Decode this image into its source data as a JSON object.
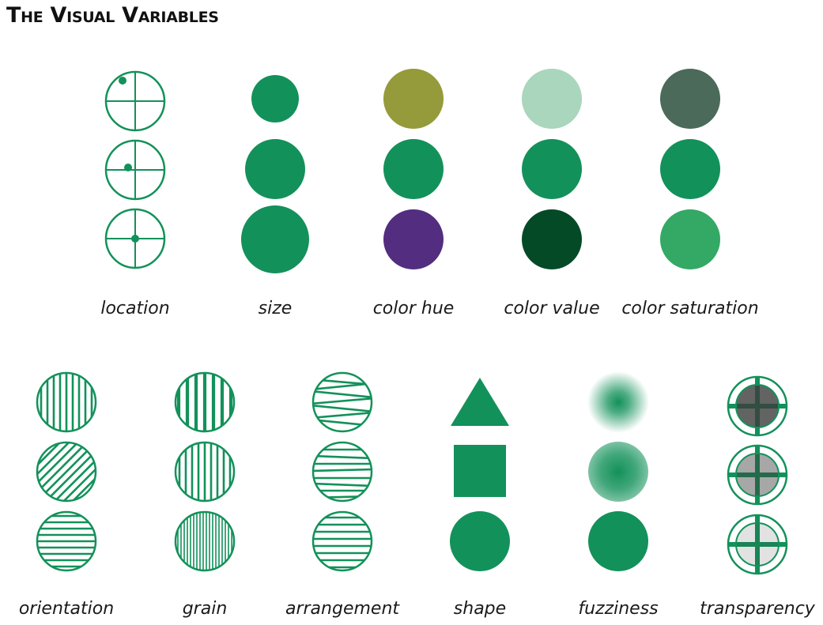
{
  "title": "The Visual Variables",
  "colors": {
    "green": "#13915a",
    "olive": "#959a3a",
    "purple": "#522d80",
    "pale_green": "#a9d6bc",
    "dark_green": "#044a26",
    "gray_green": "#4b6a5a",
    "bright_green": "#34a865",
    "shadow": "#3c3c3c"
  },
  "labels": {
    "location": "location",
    "size": "size",
    "color_hue": "color hue",
    "color_value": "color value",
    "color_saturation": "color saturation",
    "orientation": "orientation",
    "grain": "grain",
    "arrangement": "arrangement",
    "shape": "shape",
    "fuzziness": "fuzziness",
    "transparency": "transparency"
  },
  "variables": {
    "location": {
      "dots": [
        "upper-left",
        "center-left",
        "center"
      ]
    },
    "size": {
      "levels": [
        "small",
        "medium",
        "large"
      ]
    },
    "color_hue": {
      "fills": [
        "olive",
        "green",
        "purple"
      ]
    },
    "color_value": {
      "fills": [
        "pale_green",
        "green",
        "dark_green"
      ]
    },
    "color_saturation": {
      "fills": [
        "gray_green",
        "green",
        "bright_green"
      ]
    },
    "orientation": {
      "angles_deg": [
        90,
        45,
        0
      ]
    },
    "grain": {
      "line_counts": [
        7,
        10,
        18
      ]
    },
    "arrangement": {
      "patterns": [
        "zigzag",
        "skewed",
        "regular"
      ]
    },
    "shape": {
      "shapes": [
        "triangle",
        "square",
        "circle"
      ]
    },
    "fuzziness": {
      "levels": [
        "high",
        "medium",
        "none"
      ]
    },
    "transparency": {
      "levels": [
        "low",
        "medium",
        "high"
      ]
    }
  }
}
